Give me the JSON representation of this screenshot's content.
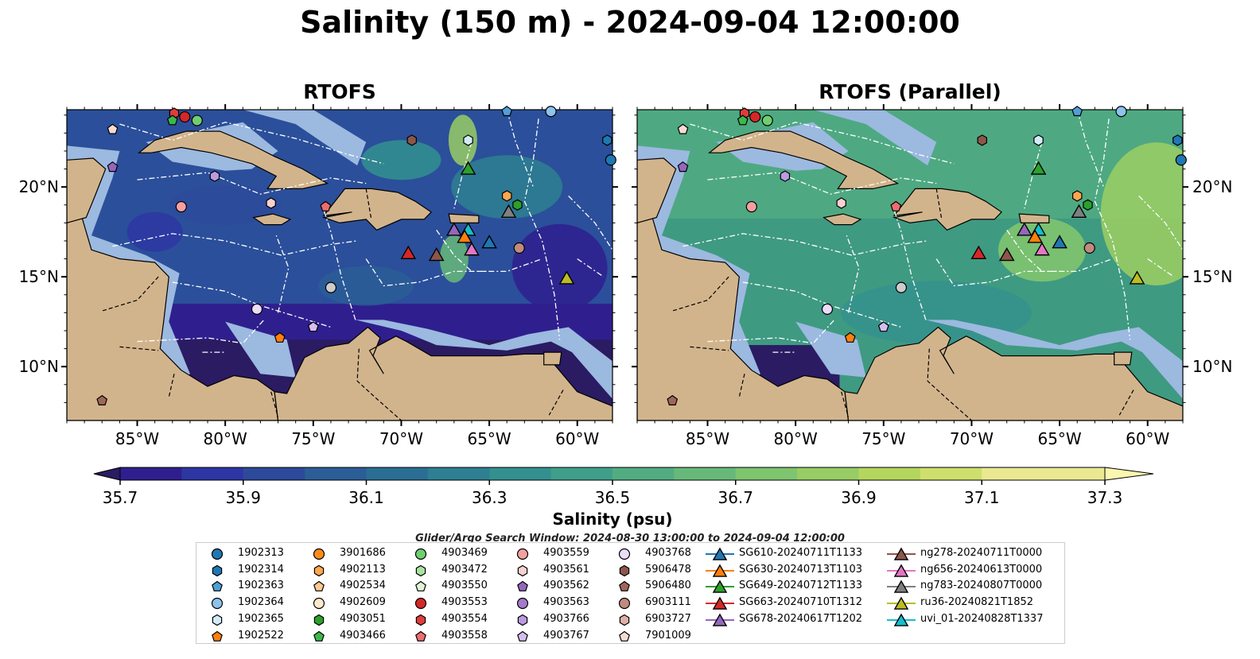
{
  "title": "Salinity (150 m) - 2024-09-04 12:00:00",
  "panels": [
    {
      "title": "RTOFS"
    },
    {
      "title": "RTOFS (Parallel)"
    }
  ],
  "map": {
    "lon_range": [
      -89.0,
      -58.0
    ],
    "lat_range": [
      7.0,
      24.3
    ],
    "lon_ticks": [
      "85°W",
      "80°W",
      "75°W",
      "70°W",
      "65°W",
      "60°W"
    ],
    "lat_ticks": [
      "20°N",
      "15°N",
      "10°N"
    ],
    "colors": {
      "land": "#d2b48c",
      "shelf": "#9cb9e0",
      "eez_lines": "#ffffff",
      "borders": "#000000"
    }
  },
  "colorbar": {
    "label": "Salinity (psu)",
    "tick_labels": [
      "35.7",
      "35.9",
      "36.1",
      "36.3",
      "36.5",
      "36.7",
      "36.9",
      "37.1",
      "37.3"
    ],
    "min": 35.7,
    "max": 37.3,
    "step": 0.1,
    "extend": "both",
    "colormap": [
      "#2a1b63",
      "#2f1f8e",
      "#2d36a3",
      "#2d4a9a",
      "#2b5d97",
      "#2a6e93",
      "#2e7f91",
      "#33908f",
      "#3f9f8a",
      "#52ac82",
      "#67b979",
      "#7fc46f",
      "#98cc64",
      "#b5d65e",
      "#cfdf6c",
      "#eae992",
      "#fbf7b0"
    ]
  },
  "search_window": "Glider/Argo Search Window: 2024-08-30 13:00:00 to 2024-09-04 12:00:00",
  "legend": {
    "argo": [
      {
        "label": "1902313",
        "marker": "circle",
        "color": "#1f77b4"
      },
      {
        "label": "1902314",
        "marker": "hexagon",
        "color": "#1f77b4"
      },
      {
        "label": "1902363",
        "marker": "pentagon",
        "color": "#4f9fd8"
      },
      {
        "label": "1902364",
        "marker": "circle",
        "color": "#8ec3ea"
      },
      {
        "label": "1902365",
        "marker": "hexagon",
        "color": "#d3ebf9"
      },
      {
        "label": "1902522",
        "marker": "pentagon",
        "color": "#ff7f0e"
      },
      {
        "label": "3901686",
        "marker": "circle",
        "color": "#ff8c1a"
      },
      {
        "label": "4902113",
        "marker": "hexagon",
        "color": "#ffa64d"
      },
      {
        "label": "4902534",
        "marker": "pentagon",
        "color": "#ffc890"
      },
      {
        "label": "4902609",
        "marker": "circle",
        "color": "#ffe8cc"
      },
      {
        "label": "4903051",
        "marker": "hexagon",
        "color": "#2ca02c"
      },
      {
        "label": "4903466",
        "marker": "pentagon",
        "color": "#3cb84a"
      },
      {
        "label": "4903469",
        "marker": "circle",
        "color": "#6fcf6f"
      },
      {
        "label": "4903472",
        "marker": "hexagon",
        "color": "#a8e3a0"
      },
      {
        "label": "4903550",
        "marker": "pentagon",
        "color": "#dff5d6"
      },
      {
        "label": "4903553",
        "marker": "circle",
        "color": "#d62728"
      },
      {
        "label": "4903554",
        "marker": "hexagon",
        "color": "#e03c3c"
      },
      {
        "label": "4903558",
        "marker": "pentagon",
        "color": "#ec6d6d"
      },
      {
        "label": "4903559",
        "marker": "circle",
        "color": "#f4a0a0"
      },
      {
        "label": "4903561",
        "marker": "hexagon",
        "color": "#fad0d0"
      },
      {
        "label": "4903562",
        "marker": "pentagon",
        "color": "#9467bd"
      },
      {
        "label": "4903563",
        "marker": "circle",
        "color": "#a27bcc"
      },
      {
        "label": "4903766",
        "marker": "hexagon",
        "color": "#bb9ae0"
      },
      {
        "label": "4903767",
        "marker": "pentagon",
        "color": "#d4bdf0"
      },
      {
        "label": "4903768",
        "marker": "circle",
        "color": "#ecdcfb"
      },
      {
        "label": "5906478",
        "marker": "hexagon",
        "color": "#8c564b"
      },
      {
        "label": "5906480",
        "marker": "pentagon",
        "color": "#a0665a"
      },
      {
        "label": "6903111",
        "marker": "circle",
        "color": "#c08a7f"
      },
      {
        "label": "6903727",
        "marker": "hexagon",
        "color": "#deb0a6"
      },
      {
        "label": "7901009",
        "marker": "pentagon",
        "color": "#f7dbd3"
      }
    ],
    "gliders": [
      {
        "label": "SG610-20240711T1133",
        "color": "#1f77b4"
      },
      {
        "label": "SG630-20240713T1103",
        "color": "#ff7f0e"
      },
      {
        "label": "SG649-20240712T1133",
        "color": "#2ca02c"
      },
      {
        "label": "SG663-20240710T1312",
        "color": "#d62728"
      },
      {
        "label": "SG678-20240617T1202",
        "color": "#9467bd"
      },
      {
        "label": "ng278-20240711T0000",
        "color": "#8c564b"
      },
      {
        "label": "ng656-20240613T0000",
        "color": "#e377c2"
      },
      {
        "label": "ng783-20240807T0000",
        "color": "#7f7f7f"
      },
      {
        "label": "ru36-20240821T1852",
        "color": "#bcbd22"
      },
      {
        "label": "uvi_01-20240828T1337",
        "color": "#17becf"
      }
    ]
  },
  "markers": [
    {
      "id": "1902314",
      "lon": -58.3,
      "lat": 22.6
    },
    {
      "id": "1902313",
      "lon": -58.1,
      "lat": 21.5
    },
    {
      "id": "1902363",
      "lon": -64.0,
      "lat": 24.2
    },
    {
      "id": "1902364",
      "lon": -61.5,
      "lat": 24.2
    },
    {
      "id": "4903554",
      "lon": -82.9,
      "lat": 24.1
    },
    {
      "id": "4903553",
      "lon": -82.3,
      "lat": 23.9
    },
    {
      "id": "4903466",
      "lon": -83.0,
      "lat": 23.7
    },
    {
      "id": "4903469",
      "lon": -81.6,
      "lat": 23.7
    },
    {
      "id": "7901009",
      "lon": -86.4,
      "lat": 23.2
    },
    {
      "id": "4903562",
      "lon": -86.4,
      "lat": 21.1
    },
    {
      "id": "4903766",
      "lon": -80.6,
      "lat": 20.6
    },
    {
      "id": "4903559",
      "lon": -82.5,
      "lat": 18.9
    },
    {
      "id": "4903561",
      "lon": -77.4,
      "lat": 19.1
    },
    {
      "id": "4903558",
      "lon": -74.3,
      "lat": 18.9
    },
    {
      "id": "5906478",
      "lon": -69.4,
      "lat": 22.6
    },
    {
      "id": "1902365",
      "lon": -66.2,
      "lat": 22.6
    },
    {
      "id": "4902113",
      "lon": -64.0,
      "lat": 19.5
    },
    {
      "id": "4903051",
      "lon": -63.4,
      "lat": 19.0
    },
    {
      "id": "6903111",
      "lon": -63.3,
      "lat": 16.6
    },
    {
      "id": "4903768",
      "lon": -78.2,
      "lat": 13.2
    },
    {
      "id": "4903767",
      "lon": -75.0,
      "lat": 12.2
    },
    {
      "id": "4903763",
      "lon": -74.0,
      "lat": 14.4
    },
    {
      "id": "1902522",
      "lon": -76.9,
      "lat": 11.6
    },
    {
      "id": "5906480",
      "lon": -87.0,
      "lat": 8.1
    }
  ],
  "glider_positions": [
    {
      "id": "SG649-20240712T1133",
      "lon": -66.2,
      "lat": 21.0
    },
    {
      "id": "ng783-20240807T0000",
      "lon": -63.9,
      "lat": 18.6
    },
    {
      "id": "SG678-20240617T1202",
      "lon": -67.0,
      "lat": 17.6
    },
    {
      "id": "uvi_01-20240828T1337",
      "lon": -66.2,
      "lat": 17.6
    },
    {
      "id": "SG630-20240713T1103",
      "lon": -66.4,
      "lat": 17.2
    },
    {
      "id": "SG610-20240711T1133",
      "lon": -65.0,
      "lat": 16.9
    },
    {
      "id": "ng656-20240613T0000",
      "lon": -66.0,
      "lat": 16.5
    },
    {
      "id": "SG663-20240710T1312",
      "lon": -69.6,
      "lat": 16.3
    },
    {
      "id": "ng278-20240711T0000",
      "lon": -68.0,
      "lat": 16.2
    },
    {
      "id": "ru36-20240821T1852",
      "lon": -60.6,
      "lat": 14.9
    }
  ]
}
